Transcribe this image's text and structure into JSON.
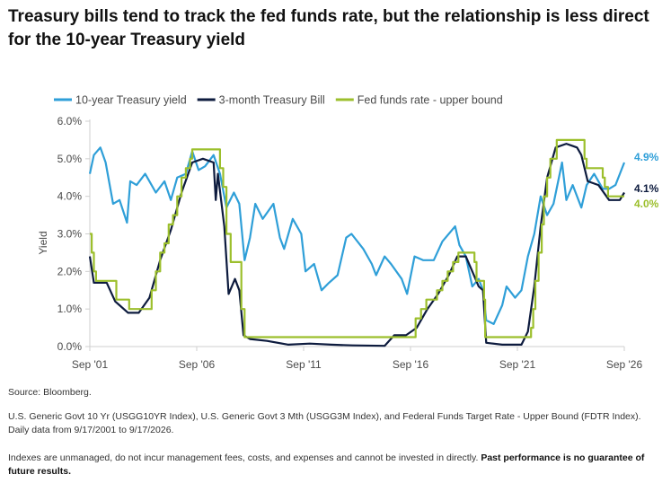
{
  "title": "Treasury bills tend to track the fed funds rate, but the relationship is less direct for the 10-year Treasury yield",
  "source": "Source: Bloomberg.",
  "index_note": "U.S. Generic Govt 10 Yr (USGG10YR Index), U.S. Generic Govt 3 Mth (USGG3M Index), and Federal Funds Target Rate - Upper Bound (FDTR Index). Daily data from 9/17/2001 to 9/17/2026.",
  "disclaimer": "Indexes are unmanaged, do not incur management fees, costs, and expenses and cannot be invested in directly.",
  "disclaimer_bold": "Past performance is no guarantee of future results.",
  "colors": {
    "ten_year": "#2f9fd8",
    "three_month": "#0d1b3e",
    "fed_funds": "#9cbf2c",
    "axis": "#cfcfcf",
    "text": "#4a4a4a"
  },
  "chart_data": {
    "type": "line",
    "title": "Treasury bills tend to track the fed funds rate, but the relationship is less direct for the 10-year Treasury yield",
    "xlabel": "",
    "ylabel": "Yield",
    "x_ticks": [
      "Sep '01",
      "Sep '06",
      "Sep '11",
      "Sep '16",
      "Sep '21",
      "Sep '26"
    ],
    "y_ticks": [
      "0.0%",
      "1.0%",
      "2.0%",
      "3.0%",
      "4.0%",
      "5.0%",
      "6.0%"
    ],
    "xlim": [
      2001.71,
      2026.71
    ],
    "ylim": [
      0,
      6
    ],
    "grid": false,
    "legend_position": "top",
    "series": [
      {
        "name": "10-year Treasury yield",
        "end_label": "4.9%",
        "x": [
          2001.71,
          2001.9,
          2002.2,
          2002.45,
          2002.8,
          2003.1,
          2003.45,
          2003.6,
          2003.9,
          2004.3,
          2004.8,
          2005.2,
          2005.5,
          2005.8,
          2006.2,
          2006.5,
          2006.8,
          2007.1,
          2007.5,
          2007.8,
          2008.1,
          2008.45,
          2008.7,
          2008.95,
          2009.2,
          2009.45,
          2009.8,
          2010.3,
          2010.6,
          2010.8,
          2011.2,
          2011.6,
          2011.8,
          2012.2,
          2012.55,
          2012.9,
          2013.3,
          2013.7,
          2013.95,
          2014.5,
          2014.9,
          2015.1,
          2015.5,
          2015.8,
          2016.3,
          2016.55,
          2016.9,
          2017.3,
          2017.8,
          2018.2,
          2018.8,
          2019.0,
          2019.3,
          2019.6,
          2019.9,
          2020.1,
          2020.25,
          2020.6,
          2021.0,
          2021.2,
          2021.6,
          2021.9,
          2022.2,
          2022.5,
          2022.8,
          2023.1,
          2023.4,
          2023.8,
          2024.0,
          2024.3,
          2024.7,
          2024.95,
          2025.3,
          2025.7,
          2026.0,
          2026.3,
          2026.71
        ],
        "values": [
          4.6,
          5.1,
          5.3,
          4.9,
          3.8,
          3.9,
          3.3,
          4.4,
          4.3,
          4.6,
          4.1,
          4.4,
          3.9,
          4.5,
          4.6,
          5.2,
          4.7,
          4.8,
          5.1,
          4.6,
          3.7,
          4.1,
          3.8,
          2.3,
          2.9,
          3.8,
          3.4,
          3.8,
          2.9,
          2.6,
          3.4,
          3.0,
          2.0,
          2.2,
          1.5,
          1.7,
          1.9,
          2.9,
          3.0,
          2.6,
          2.2,
          1.9,
          2.4,
          2.2,
          1.8,
          1.4,
          2.4,
          2.3,
          2.3,
          2.8,
          3.2,
          2.7,
          2.4,
          1.6,
          1.8,
          1.5,
          0.7,
          0.6,
          1.1,
          1.6,
          1.3,
          1.5,
          2.4,
          3.0,
          4.0,
          3.5,
          3.8,
          4.9,
          3.9,
          4.3,
          3.7,
          4.3,
          4.6,
          4.2,
          4.2,
          4.3,
          4.9
        ]
      },
      {
        "name": "3-month Treasury Bill",
        "end_label": "4.1%",
        "x": [
          2001.71,
          2001.9,
          2002.5,
          2002.9,
          2003.1,
          2003.5,
          2004.0,
          2004.5,
          2005.0,
          2005.5,
          2006.0,
          2006.5,
          2007.0,
          2007.5,
          2007.6,
          2007.7,
          2008.0,
          2008.2,
          2008.5,
          2008.7,
          2008.9,
          2009.2,
          2010.0,
          2011.0,
          2012.0,
          2013.0,
          2014.0,
          2015.5,
          2015.95,
          2016.5,
          2017.0,
          2017.5,
          2018.0,
          2018.5,
          2018.9,
          2019.3,
          2019.6,
          2019.9,
          2020.1,
          2020.25,
          2021.0,
          2021.9,
          2022.2,
          2022.5,
          2022.8,
          2023.1,
          2023.5,
          2024.0,
          2024.5,
          2024.7,
          2025.0,
          2025.5,
          2026.0,
          2026.5,
          2026.71
        ],
        "values": [
          2.4,
          1.7,
          1.7,
          1.2,
          1.1,
          0.9,
          0.9,
          1.3,
          2.3,
          3.1,
          4.1,
          4.9,
          5.0,
          4.9,
          3.9,
          4.6,
          3.2,
          1.4,
          1.8,
          1.5,
          0.3,
          0.2,
          0.15,
          0.05,
          0.08,
          0.05,
          0.03,
          0.02,
          0.3,
          0.3,
          0.5,
          1.0,
          1.4,
          1.9,
          2.4,
          2.4,
          2.0,
          1.6,
          1.5,
          0.1,
          0.05,
          0.05,
          0.4,
          1.6,
          3.2,
          4.5,
          5.3,
          5.4,
          5.3,
          5.1,
          4.4,
          4.3,
          3.9,
          3.9,
          4.1
        ]
      },
      {
        "name": "Fed funds rate - upper bound",
        "end_label": "4.0%",
        "x": [
          2001.71,
          2001.8,
          2001.9,
          2002.0,
          2002.9,
          2002.95,
          2003.5,
          2003.55,
          2004.5,
          2004.6,
          2004.8,
          2005.0,
          2005.2,
          2005.4,
          2005.6,
          2005.8,
          2006.0,
          2006.2,
          2006.4,
          2006.5,
          2007.7,
          2007.8,
          2007.95,
          2008.1,
          2008.3,
          2008.8,
          2008.95,
          2015.95,
          2016.95,
          2017.2,
          2017.45,
          2017.95,
          2018.2,
          2018.45,
          2018.7,
          2018.95,
          2019.55,
          2019.7,
          2019.8,
          2020.15,
          2020.2,
          2022.2,
          2022.35,
          2022.45,
          2022.55,
          2022.7,
          2022.85,
          2022.95,
          2023.1,
          2023.25,
          2023.55,
          2024.7,
          2024.85,
          2024.95,
          2025.7,
          2025.8,
          2025.95,
          2026.71
        ],
        "values": [
          3.0,
          2.5,
          2.0,
          1.75,
          1.75,
          1.25,
          1.25,
          1.0,
          1.0,
          1.5,
          2.0,
          2.5,
          2.75,
          3.25,
          3.5,
          4.0,
          4.5,
          4.75,
          5.0,
          5.25,
          5.25,
          4.75,
          4.25,
          3.0,
          2.25,
          1.0,
          0.25,
          0.25,
          0.75,
          1.0,
          1.25,
          1.5,
          1.75,
          2.0,
          2.25,
          2.5,
          2.5,
          2.25,
          1.75,
          1.25,
          0.25,
          0.25,
          0.5,
          1.0,
          1.75,
          2.5,
          3.25,
          4.0,
          4.5,
          5.0,
          5.5,
          5.5,
          5.0,
          4.75,
          4.5,
          4.25,
          4.0,
          4.0
        ]
      }
    ]
  }
}
